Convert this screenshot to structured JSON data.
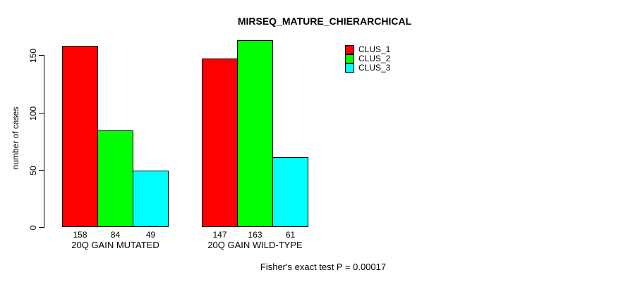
{
  "page": {
    "background": "#FFFFFF"
  },
  "chart_data": {
    "type": "bar",
    "title": "MIRSEQ_MATURE_CHIERARCHICAL",
    "xlabel": "",
    "ylabel": "number of cases",
    "categories": [
      "20Q GAIN MUTATED",
      "20Q GAIN WILD-TYPE"
    ],
    "series": [
      {
        "name": "CLUS_1",
        "color": "#FF0000",
        "values": [
          158,
          147
        ]
      },
      {
        "name": "CLUS_2",
        "color": "#00FF00",
        "values": [
          84,
          163
        ]
      },
      {
        "name": "CLUS_3",
        "color": "#00FFFF",
        "values": [
          49,
          61
        ]
      }
    ],
    "bar_value_labels": [
      [
        "158",
        "84",
        "49"
      ],
      [
        "147",
        "163",
        "61"
      ]
    ],
    "ylim": [
      0,
      150
    ],
    "yticks": [
      "0",
      "50",
      "100",
      "150"
    ],
    "legend": {
      "position": "top-right",
      "entries": [
        "CLUS_1",
        "CLUS_2",
        "CLUS_3"
      ]
    },
    "annotation": "Fisher's exact test P = 0.00017",
    "grid": false
  }
}
